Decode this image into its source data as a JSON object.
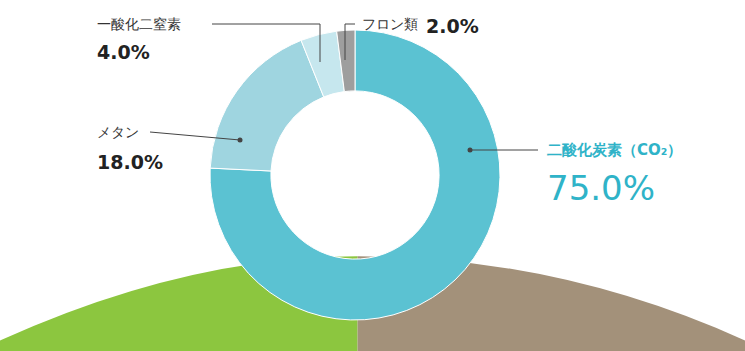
{
  "chart_data": {
    "type": "pie",
    "categories": [
      "二酸化炭素（CO₂）",
      "メタン",
      "一酸化二窒素",
      "フロン類"
    ],
    "values": [
      75.0,
      18.0,
      4.0,
      2.0
    ],
    "value_labels": [
      "75.0%",
      "18.0%",
      "4.0%",
      "2.0%"
    ],
    "colors": [
      "#5bc2d2",
      "#9fd5e0",
      "#c6e7ee",
      "#9e9e9e"
    ]
  }
}
